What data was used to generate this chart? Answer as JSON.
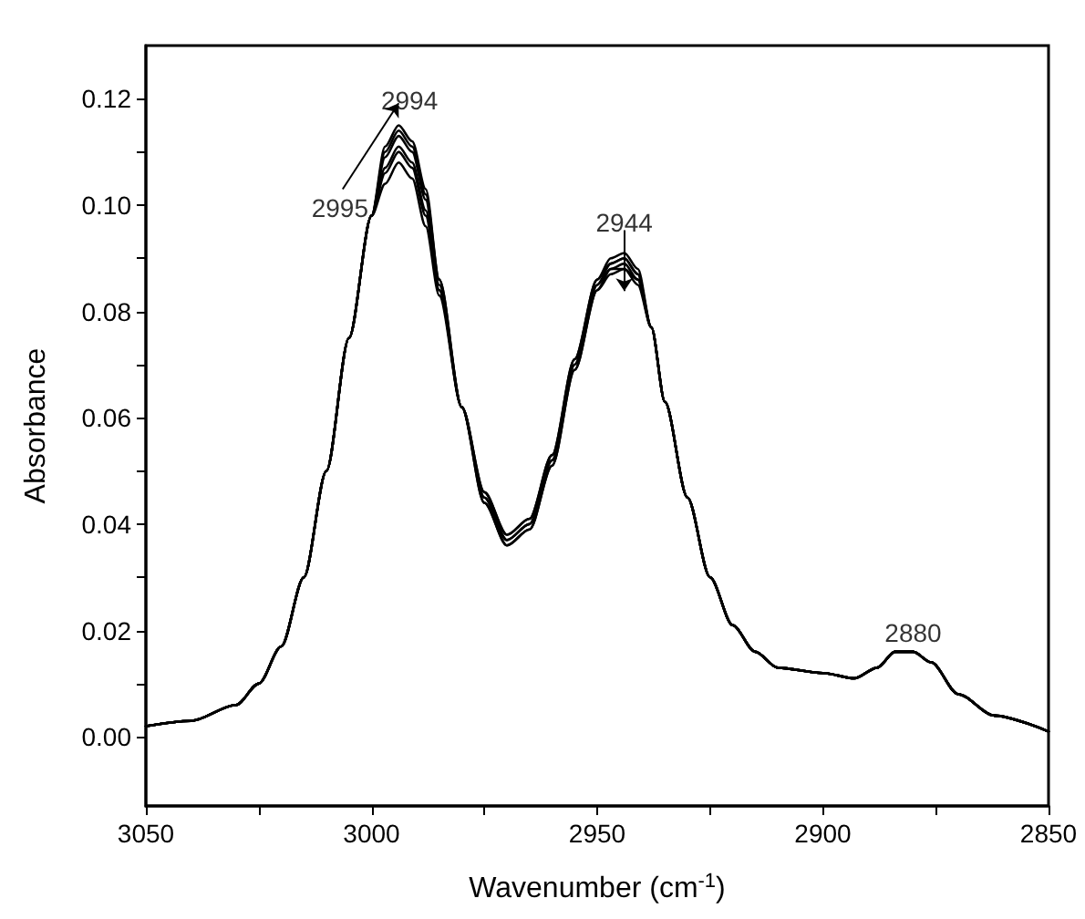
{
  "chart_data": {
    "type": "line",
    "xlabel": "Wavenumber (cm$^{-1}$)",
    "ylabel": "Absorbance",
    "x": [
      3050,
      3040,
      3030,
      3025,
      3020,
      3015,
      3010,
      3005,
      3000,
      2997,
      2994,
      2991,
      2988,
      2985,
      2980,
      2975,
      2970,
      2965,
      2960,
      2955,
      2950,
      2947,
      2944,
      2941,
      2938,
      2935,
      2930,
      2925,
      2920,
      2915,
      2910,
      2900,
      2893,
      2888,
      2884,
      2880,
      2876,
      2870,
      2862,
      2850
    ],
    "series": [
      {
        "color": "#000000",
        "values": [
          0.002,
          0.003,
          0.006,
          0.01,
          0.017,
          0.03,
          0.05,
          0.075,
          0.098,
          0.104,
          0.108,
          0.105,
          0.096,
          0.083,
          0.062,
          0.046,
          0.038,
          0.041,
          0.053,
          0.071,
          0.086,
          0.09,
          0.091,
          0.088,
          0.077,
          0.063,
          0.045,
          0.03,
          0.021,
          0.016,
          0.013,
          0.012,
          0.011,
          0.013,
          0.016,
          0.016,
          0.014,
          0.008,
          0.004,
          0.001
        ]
      },
      {
        "color": "#000000",
        "values": [
          0.002,
          0.003,
          0.006,
          0.01,
          0.017,
          0.03,
          0.05,
          0.075,
          0.098,
          0.106,
          0.11,
          0.107,
          0.098,
          0.084,
          0.062,
          0.046,
          0.038,
          0.041,
          0.053,
          0.071,
          0.086,
          0.089,
          0.09,
          0.087,
          0.077,
          0.063,
          0.045,
          0.03,
          0.021,
          0.016,
          0.013,
          0.012,
          0.011,
          0.013,
          0.016,
          0.016,
          0.014,
          0.008,
          0.004,
          0.001
        ]
      },
      {
        "color": "#000000",
        "values": [
          0.002,
          0.003,
          0.006,
          0.01,
          0.017,
          0.03,
          0.05,
          0.075,
          0.098,
          0.107,
          0.111,
          0.108,
          0.099,
          0.084,
          0.062,
          0.045,
          0.037,
          0.04,
          0.052,
          0.07,
          0.085,
          0.089,
          0.09,
          0.087,
          0.077,
          0.063,
          0.045,
          0.03,
          0.021,
          0.016,
          0.013,
          0.012,
          0.011,
          0.013,
          0.016,
          0.016,
          0.014,
          0.008,
          0.004,
          0.001
        ]
      },
      {
        "color": "#000000",
        "values": [
          0.002,
          0.003,
          0.006,
          0.01,
          0.017,
          0.03,
          0.05,
          0.075,
          0.098,
          0.109,
          0.113,
          0.11,
          0.101,
          0.085,
          0.062,
          0.045,
          0.037,
          0.04,
          0.052,
          0.07,
          0.085,
          0.088,
          0.089,
          0.086,
          0.077,
          0.063,
          0.045,
          0.03,
          0.021,
          0.016,
          0.013,
          0.012,
          0.011,
          0.013,
          0.016,
          0.016,
          0.014,
          0.008,
          0.004,
          0.001
        ]
      },
      {
        "color": "#000000",
        "values": [
          0.002,
          0.003,
          0.006,
          0.01,
          0.017,
          0.03,
          0.05,
          0.075,
          0.098,
          0.11,
          0.114,
          0.111,
          0.102,
          0.086,
          0.062,
          0.044,
          0.036,
          0.039,
          0.051,
          0.069,
          0.084,
          0.088,
          0.088,
          0.086,
          0.077,
          0.063,
          0.045,
          0.03,
          0.021,
          0.016,
          0.013,
          0.012,
          0.011,
          0.013,
          0.016,
          0.016,
          0.014,
          0.008,
          0.004,
          0.001
        ]
      },
      {
        "color": "#000000",
        "values": [
          0.002,
          0.003,
          0.006,
          0.01,
          0.017,
          0.03,
          0.05,
          0.075,
          0.098,
          0.111,
          0.115,
          0.112,
          0.103,
          0.086,
          0.062,
          0.044,
          0.036,
          0.039,
          0.051,
          0.069,
          0.084,
          0.087,
          0.088,
          0.085,
          0.077,
          0.063,
          0.045,
          0.03,
          0.021,
          0.016,
          0.013,
          0.012,
          0.011,
          0.013,
          0.016,
          0.016,
          0.014,
          0.008,
          0.004,
          0.001
        ]
      }
    ],
    "annotations": [
      {
        "text": "2994",
        "x": 2994,
        "y": 0.115
      },
      {
        "text": "2995",
        "x": 2995,
        "y": 0.108
      },
      {
        "text": "2944",
        "x": 2944,
        "y": 0.091
      },
      {
        "text": "2880",
        "x": 2880,
        "y": 0.016
      }
    ],
    "xlim": [
      3050,
      2850
    ],
    "xticks": [
      3050,
      {
        "value": 3025,
        "label": null
      },
      3000,
      {
        "value": 2975,
        "label": null
      },
      2950,
      {
        "value": 2925,
        "label": null
      },
      2900,
      {
        "value": 2875,
        "label": null
      },
      2850
    ],
    "ylim": [
      -0.013,
      0.13
    ],
    "yticks": [
      {
        "value": 0,
        "label": "0.00"
      },
      {
        "value": 0.01,
        "label": null
      },
      {
        "value": 0.02,
        "label": "0.02"
      },
      {
        "value": 0.03,
        "label": null
      },
      {
        "value": 0.04,
        "label": "0.04"
      },
      {
        "value": 0.05,
        "label": null
      },
      {
        "value": 0.06,
        "label": "0.06"
      },
      {
        "value": 0.07,
        "label": null
      },
      {
        "value": 0.08,
        "label": "0.08"
      },
      {
        "value": 0.09,
        "label": null
      },
      {
        "value": 0.1,
        "label": "0.10"
      },
      {
        "value": 0.11,
        "label": null
      },
      {
        "value": 0.12,
        "label": "0.12"
      }
    ],
    "grid": false,
    "marker": "none",
    "line_style": "solid"
  }
}
